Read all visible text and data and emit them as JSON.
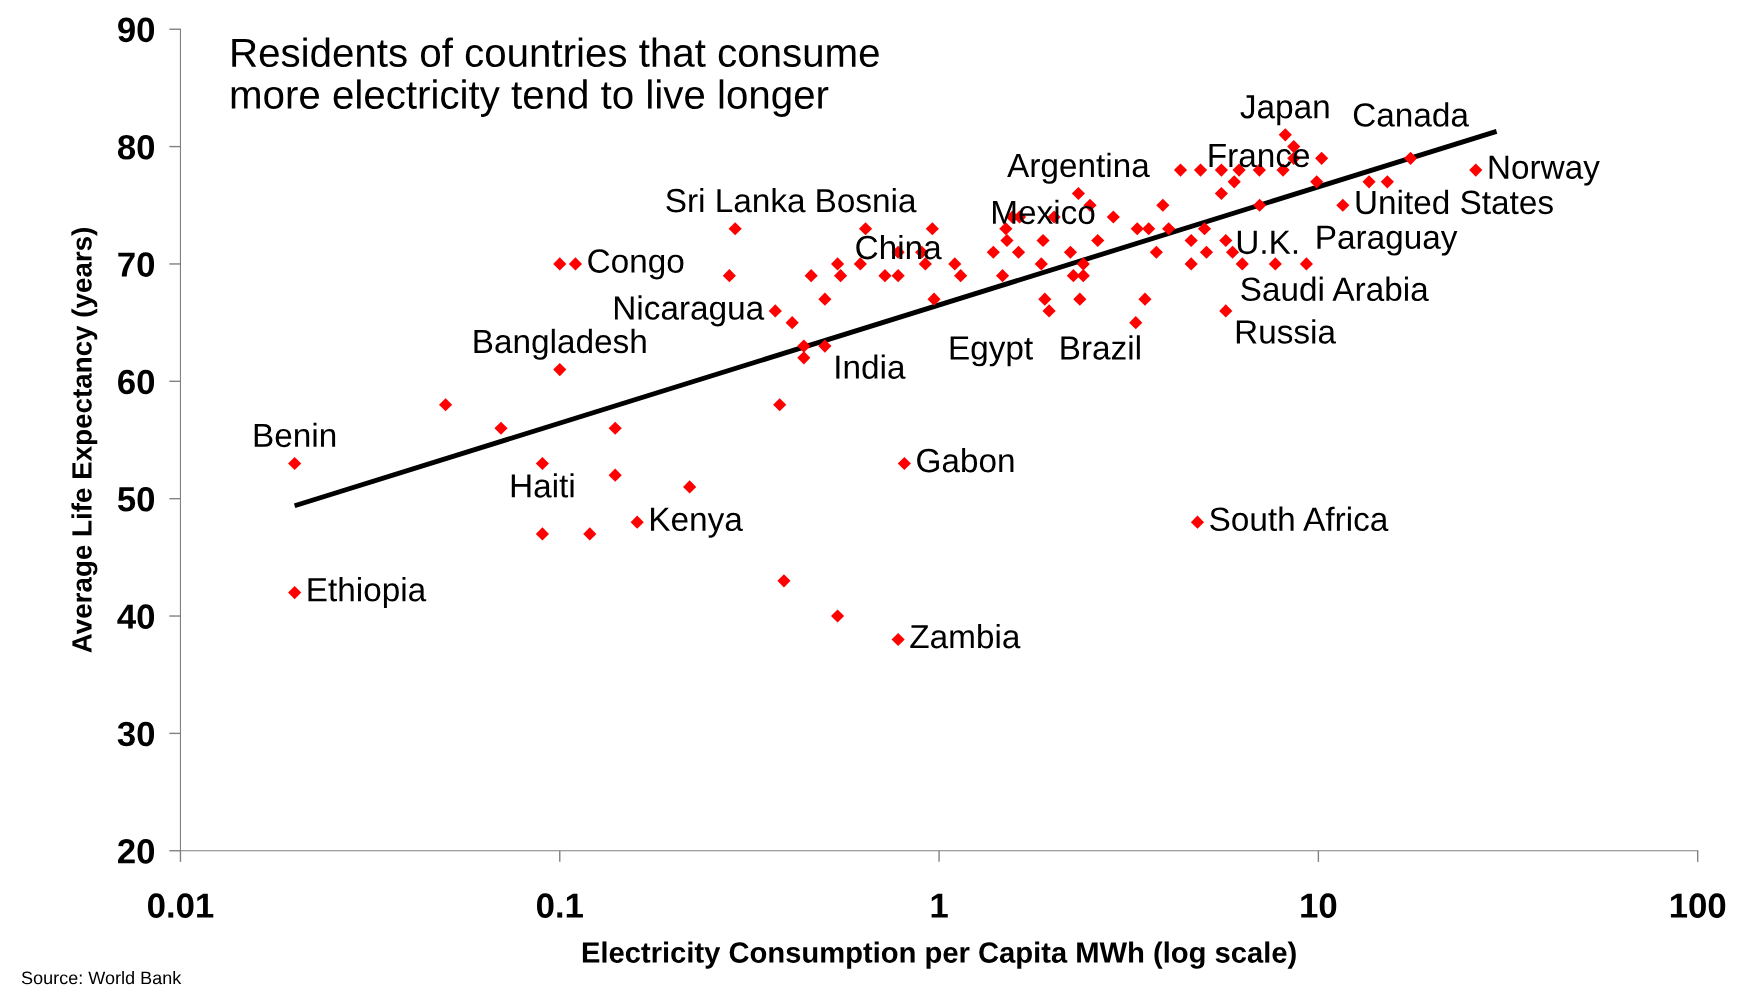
{
  "chart_data": {
    "type": "scatter",
    "title": "Residents of countries that consume\nmore electricity tend to live longer",
    "xlabel": "Electricity Consumption per Capita MWh (log scale)",
    "ylabel": "Average Life Expectancy (years)",
    "log": "x",
    "xlim": [
      0.01,
      100
    ],
    "xticks": [
      0.01,
      0.1,
      1,
      10,
      100
    ],
    "ylim": [
      20,
      90
    ],
    "yticks": [
      20,
      30,
      40,
      50,
      60,
      70,
      80,
      90
    ],
    "grid": false,
    "line_style": "solid",
    "series": [
      {
        "color": "#ff0000",
        "marker": "diamond",
        "x": [
          0.02,
          0.02,
          0.05,
          0.07,
          0.1,
          0.11,
          0.1,
          0.09,
          0.09,
          0.12,
          0.14,
          0.14,
          0.16,
          0.22,
          0.29,
          0.28,
          0.37,
          0.41,
          0.38,
          0.44,
          0.44,
          0.5,
          0.39,
          0.54,
          0.78,
          0.81,
          4.8,
          0.64,
          0.46,
          0.54,
          0.55,
          0.62,
          0.72,
          0.78,
          0.78,
          0.9,
          0.92,
          0.96,
          0.5,
          0.97,
          1.1,
          1.14,
          1.39,
          1.51,
          1.56,
          1.63,
          1.5,
          1.62,
          1.47,
          1.88,
          2.01,
          1.86,
          1.9,
          1.95,
          2.22,
          2.33,
          2.5,
          2.26,
          2.4,
          2.4,
          2.35,
          2.62,
          2.88,
          3.3,
          3.49,
          3.89,
          3.74,
          3.33,
          3.57,
          4.03,
          4.33,
          4.89,
          4.62,
          4.62,
          5.07,
          5.01,
          8.18,
          8.61,
          8.61,
          8.07,
          10.2,
          9.9,
          11.6,
          13.6,
          15.2,
          26,
          9.3,
          7.7,
          6.3,
          5.7,
          5.94,
          5.7,
          5.55,
          6.0,
          6.18,
          6.99,
          7.0,
          5.55,
          17.5
        ],
        "values": [
          53,
          42,
          58,
          56,
          70,
          70,
          61,
          53,
          47,
          47,
          56,
          52,
          48,
          51,
          73,
          69,
          66,
          65,
          58,
          63,
          62,
          63,
          43,
          40,
          38,
          53,
          48,
          73,
          69,
          70,
          69,
          70,
          69,
          69,
          71,
          71,
          70,
          73,
          67,
          67,
          70,
          69,
          71,
          72,
          74,
          74,
          73,
          71,
          69,
          72,
          74,
          70,
          67,
          66,
          71,
          76,
          75,
          69,
          69,
          70,
          67,
          72,
          74,
          65,
          67,
          75,
          71,
          73,
          73,
          73,
          78,
          78,
          72,
          70,
          71,
          73,
          81,
          80,
          79,
          78,
          79,
          77,
          75,
          77,
          77,
          78,
          70,
          70,
          70,
          66,
          71,
          72,
          76,
          77,
          78,
          78,
          75,
          78,
          79
        ]
      },
      {
        "type": "line",
        "color": "#000000",
        "x": [
          0.02,
          29.5
        ],
        "values": [
          49.4,
          81.3
        ]
      }
    ],
    "annotations": [
      {
        "text": "Benin",
        "x": 0.02,
        "y": 53
      },
      {
        "text": "Ethiopia",
        "x": 0.02,
        "y": 42
      },
      {
        "text": "Congo",
        "x": 0.11,
        "y": 70
      },
      {
        "text": "Sri Lanka",
        "x": 0.29,
        "y": 73
      },
      {
        "text": "Bangladesh",
        "x": 0.1,
        "y": 61
      },
      {
        "text": "Haiti",
        "x": 0.09,
        "y": 53
      },
      {
        "text": "Kenya",
        "x": 0.16,
        "y": 48
      },
      {
        "text": "Nicaragua",
        "x": 0.37,
        "y": 66
      },
      {
        "text": "India",
        "x": 0.5,
        "y": 63
      },
      {
        "text": "Bosnia",
        "x": 0.64,
        "y": 73
      },
      {
        "text": "China",
        "x": 0.78,
        "y": 69
      },
      {
        "text": "Egypt",
        "x": 0.97,
        "y": 67
      },
      {
        "text": "Gabon",
        "x": 0.81,
        "y": 53
      },
      {
        "text": "Zambia",
        "x": 0.78,
        "y": 38
      },
      {
        "text": "Argentina",
        "x": 2.33,
        "y": 76
      },
      {
        "text": "Mexico",
        "x": 1.88,
        "y": 72
      },
      {
        "text": "Brazil",
        "x": 1.9,
        "y": 67
      },
      {
        "text": "South Africa",
        "x": 4.8,
        "y": 48
      },
      {
        "text": "Japan",
        "x": 8.18,
        "y": 81
      },
      {
        "text": "Canada",
        "x": 17.5,
        "y": 79
      },
      {
        "text": "France",
        "x": 10.2,
        "y": 79
      },
      {
        "text": "U.K.",
        "x": 5.55,
        "y": 76
      },
      {
        "text": "Norway",
        "x": 26,
        "y": 78
      },
      {
        "text": "United States",
        "x": 11.6,
        "y": 75
      },
      {
        "text": "Saudi Arabia",
        "x": 5.7,
        "y": 72
      },
      {
        "text": "Paraguay",
        "x": 9.3,
        "y": 70
      },
      {
        "text": "Russia",
        "x": 5.7,
        "y": 66
      },
      "Source: World Bank"
    ]
  }
}
